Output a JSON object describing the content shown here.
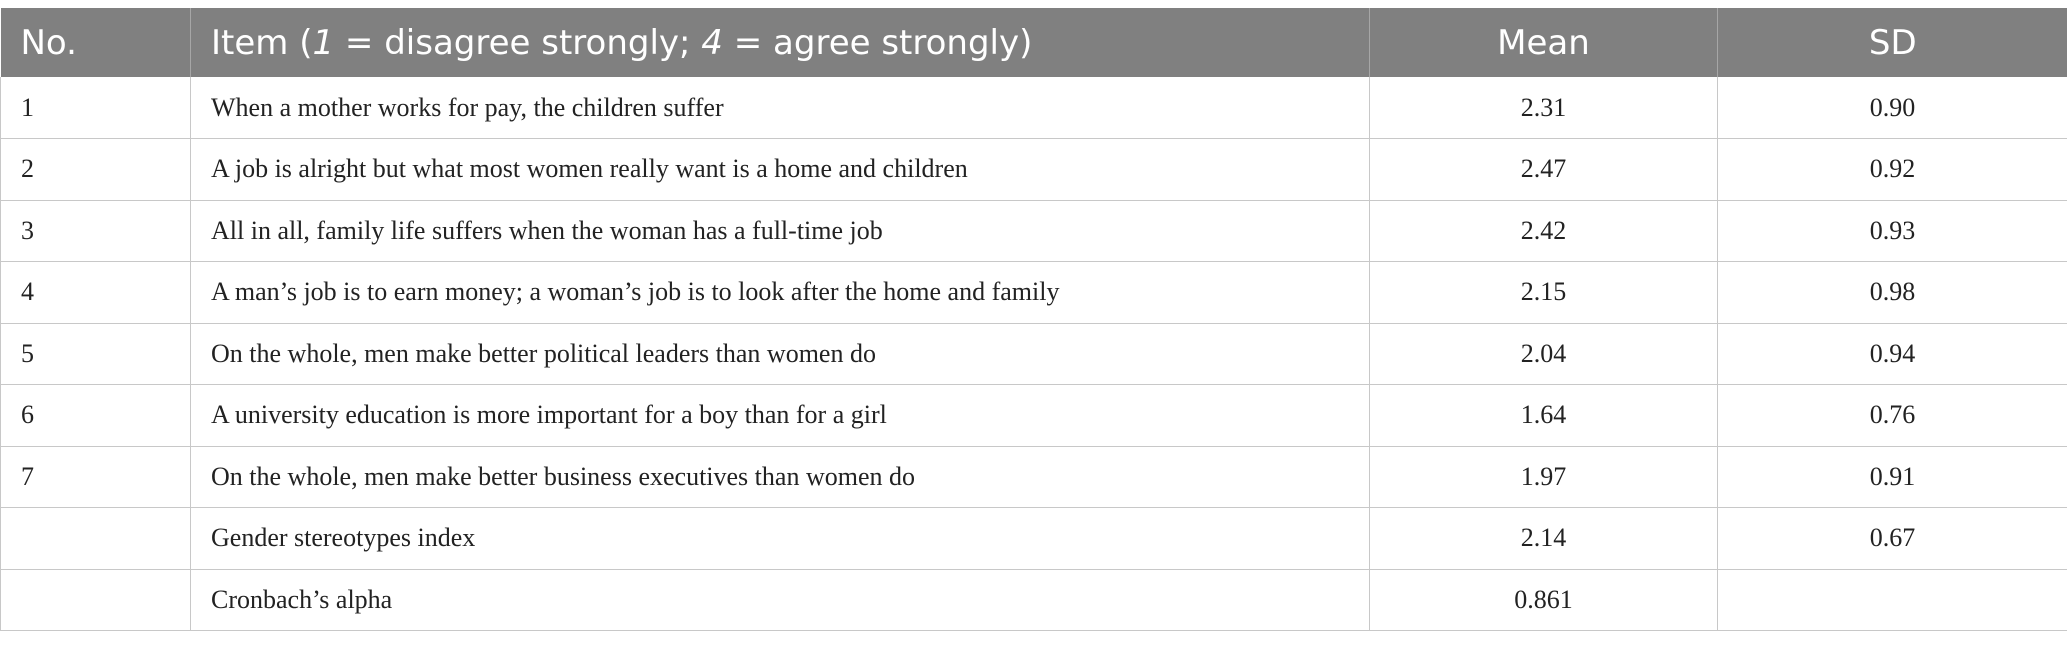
{
  "table": {
    "headers": {
      "no": "No.",
      "item_prefix": "Item (",
      "item_one": "1",
      "item_mid": " = disagree strongly; ",
      "item_four": "4",
      "item_suffix": " = agree strongly)",
      "mean": "Mean",
      "sd": "SD"
    },
    "rows": [
      {
        "no": "1",
        "item": "When a mother works for pay, the children suffer",
        "mean": "2.31",
        "sd": "0.90"
      },
      {
        "no": "2",
        "item": "A job is alright but what most women really want is a home and children",
        "mean": "2.47",
        "sd": "0.92"
      },
      {
        "no": "3",
        "item": "All in all, family life suffers when the woman has a full-time job",
        "mean": "2.42",
        "sd": "0.93"
      },
      {
        "no": "4",
        "item": "A man’s job is to earn money; a woman’s job is to look after the home and family",
        "mean": "2.15",
        "sd": "0.98"
      },
      {
        "no": "5",
        "item": "On the whole, men make better political leaders than women do",
        "mean": "2.04",
        "sd": "0.94"
      },
      {
        "no": "6",
        "item": "A university education is more important for a boy than for a girl",
        "mean": "1.64",
        "sd": "0.76"
      },
      {
        "no": "7",
        "item": "On the whole, men make better business executives than women do",
        "mean": "1.97",
        "sd": "0.91"
      },
      {
        "no": "",
        "item": "Gender stereotypes index",
        "mean": "2.14",
        "sd": "0.67"
      },
      {
        "no": "",
        "item": "Cronbach’s alpha",
        "mean": "0.861",
        "sd": ""
      }
    ]
  }
}
